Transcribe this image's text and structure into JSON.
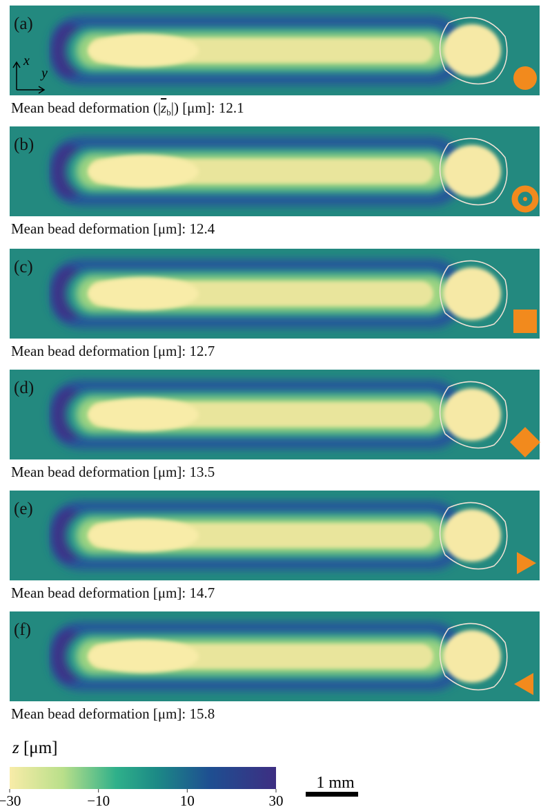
{
  "panels": [
    {
      "label": "(a)",
      "caption": "Mean bead deformation",
      "symbol": {
        "text": "z",
        "sub": "b"
      },
      "unit": "[μm]:",
      "value": 12.1,
      "axes": {
        "x": "x",
        "y": "y"
      }
    },
    {
      "label": "(b)",
      "caption": "Mean bead deformation",
      "unit": "[μm]:",
      "value": 12.4
    },
    {
      "label": "(c)",
      "caption": "Mean bead deformation",
      "unit": "[μm]:",
      "value": 12.7
    },
    {
      "label": "(d)",
      "caption": "Mean bead deformation",
      "unit": "[μm]:",
      "value": 13.5
    },
    {
      "label": "(e)",
      "caption": "Mean bead deformation",
      "unit": "[μm]:",
      "value": 14.7
    },
    {
      "label": "(f)",
      "caption": "Mean bead deformation",
      "unit": "[μm]:",
      "value": 15.8
    }
  ],
  "colorbar": {
    "symbol": "z",
    "unit": "[μm]",
    "zlim": [
      -30,
      30
    ],
    "ticks": [
      {
        "value": -30,
        "label": "−30"
      },
      {
        "value": -10,
        "label": "−10"
      },
      10,
      30
    ]
  },
  "scale_bar": "1 mm"
}
